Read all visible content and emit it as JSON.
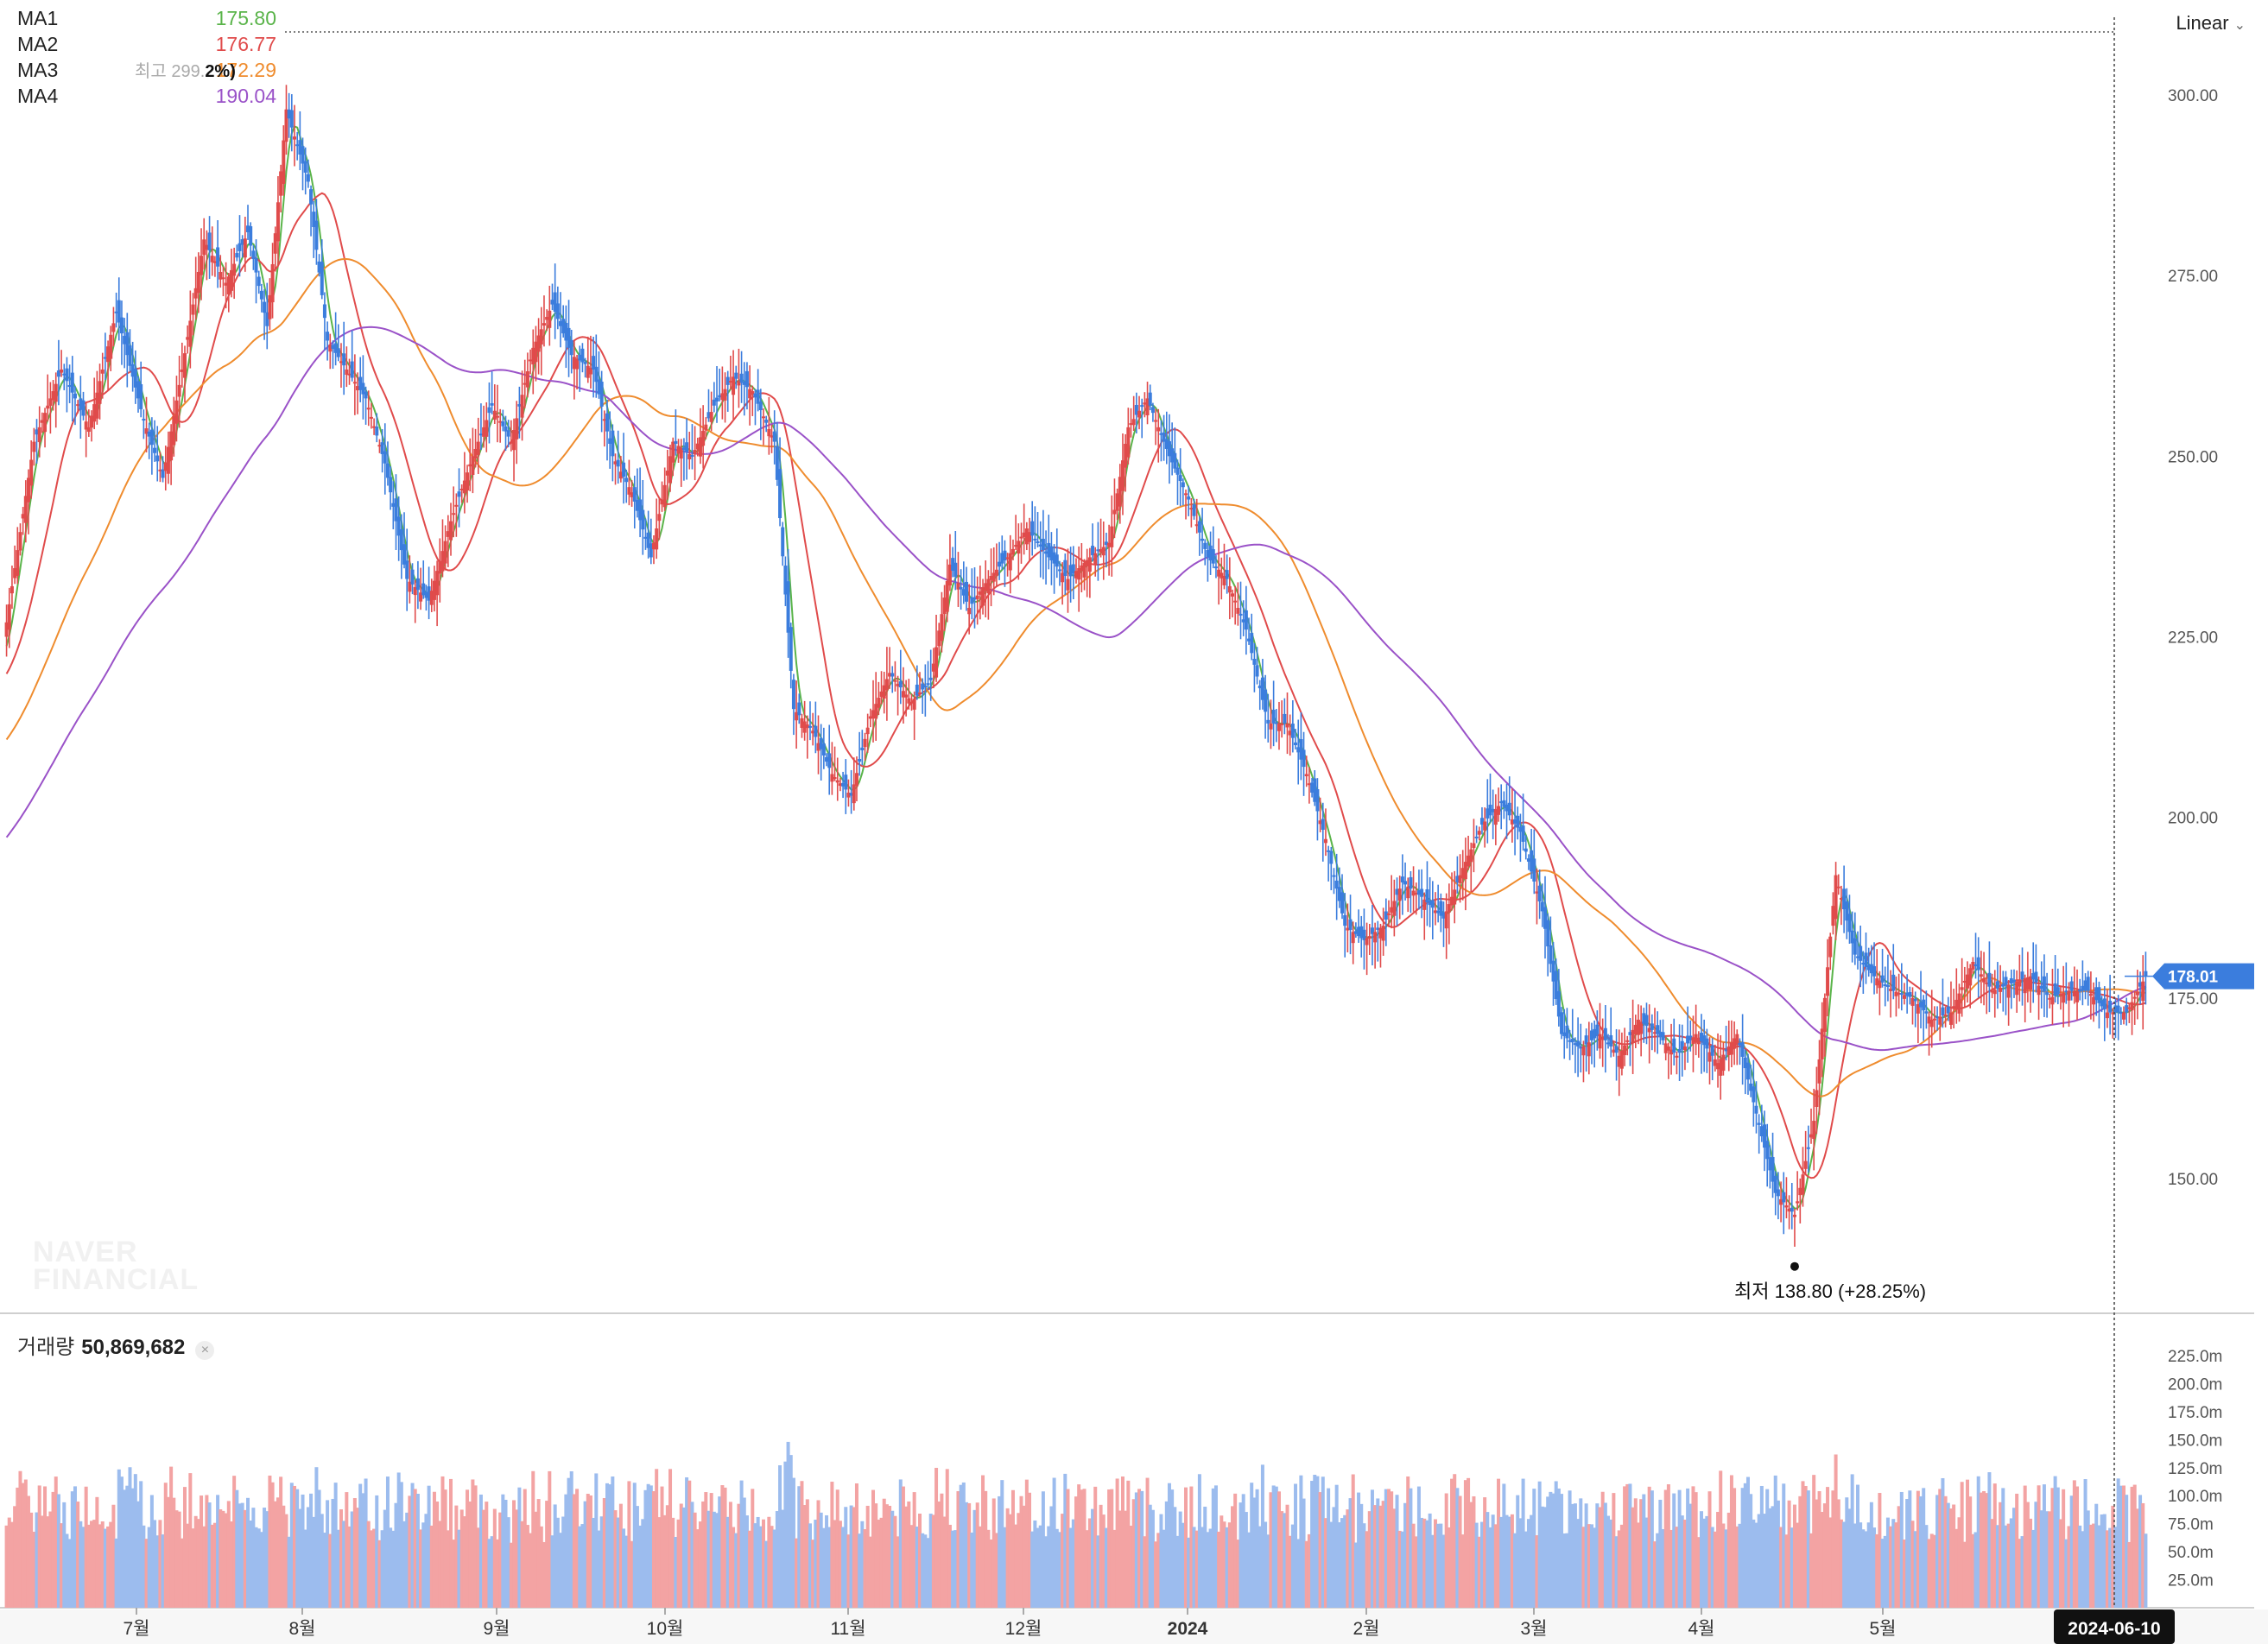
{
  "legend": [
    {
      "name": "MA1",
      "value": "175.80",
      "color": "#5ab44a"
    },
    {
      "name": "MA2",
      "value": "176.77",
      "color": "#e04b4b"
    },
    {
      "name": "MA3",
      "value": "172.29",
      "color": "#ef8c2e"
    },
    {
      "name": "MA4",
      "value": "190.04",
      "color": "#9a52c8"
    }
  ],
  "scale_button": "Linear",
  "volume": {
    "label": "거래량",
    "value": "50,869,682"
  },
  "high_marker": {
    "label": "최고",
    "value": "299.",
    "pct": "2%)"
  },
  "low_marker": {
    "label": "최저",
    "text": "138.80 (+28.25%)"
  },
  "watermark": [
    "NAVER",
    "FINANCIAL"
  ],
  "current_price": {
    "label": "178.01",
    "value": 178.01
  },
  "crosshair_date": "2024-06-10",
  "colors": {
    "up": "#e04b4b",
    "down": "#3b7ddd",
    "up_vol": "#f3a3a3",
    "down_vol": "#9cbcee",
    "current": "#3b7ddd"
  },
  "chart_data": {
    "type": "candlestick",
    "price_axis": {
      "ticks": [
        150,
        175,
        200,
        225,
        250,
        275,
        300
      ],
      "tick_labels": [
        "150.00",
        "175.00",
        "200.00",
        "225.00",
        "250.00",
        "275.00",
        "300.00"
      ],
      "range": [
        135,
        311
      ]
    },
    "volume_axis": {
      "ticks": [
        25,
        50,
        75,
        100,
        125,
        150,
        175,
        200,
        225
      ],
      "tick_labels": [
        "25.0m",
        "50.0m",
        "75.0m",
        "100.0m",
        "125.0m",
        "150.0m",
        "175.0m",
        "200.0m",
        "225.0m"
      ],
      "unit": "m",
      "range": [
        0,
        245
      ]
    },
    "x_labels": [
      "7월",
      "8월",
      "9월",
      "10월",
      "11월",
      "12월",
      "2024",
      "2월",
      "3월",
      "4월",
      "5월"
    ],
    "close_series": [
      [
        0,
        227
      ],
      [
        10,
        252
      ],
      [
        20,
        262
      ],
      [
        30,
        254
      ],
      [
        40,
        270
      ],
      [
        50,
        255
      ],
      [
        57,
        247
      ],
      [
        64,
        262
      ],
      [
        72,
        280
      ],
      [
        80,
        274
      ],
      [
        88,
        281
      ],
      [
        95,
        268
      ],
      [
        102,
        298
      ],
      [
        110,
        288
      ],
      [
        117,
        266
      ],
      [
        124,
        262
      ],
      [
        131,
        258
      ],
      [
        138,
        249
      ],
      [
        146,
        233
      ],
      [
        154,
        230
      ],
      [
        162,
        241
      ],
      [
        170,
        250
      ],
      [
        177,
        257
      ],
      [
        184,
        252
      ],
      [
        192,
        265
      ],
      [
        199,
        271
      ],
      [
        206,
        264
      ],
      [
        214,
        262
      ],
      [
        221,
        250
      ],
      [
        228,
        245
      ],
      [
        235,
        236
      ],
      [
        243,
        252
      ],
      [
        250,
        250
      ],
      [
        258,
        257
      ],
      [
        265,
        261
      ],
      [
        272,
        259
      ],
      [
        280,
        252
      ],
      [
        287,
        215
      ],
      [
        294,
        212
      ],
      [
        301,
        206
      ],
      [
        308,
        203
      ],
      [
        315,
        214
      ],
      [
        322,
        220
      ],
      [
        330,
        216
      ],
      [
        337,
        219
      ],
      [
        344,
        235
      ],
      [
        351,
        229
      ],
      [
        358,
        233
      ],
      [
        365,
        236
      ],
      [
        372,
        240
      ],
      [
        380,
        236
      ],
      [
        387,
        233
      ],
      [
        395,
        236
      ],
      [
        402,
        238
      ],
      [
        409,
        254
      ],
      [
        416,
        258
      ],
      [
        424,
        250
      ],
      [
        431,
        244
      ],
      [
        438,
        236
      ],
      [
        445,
        233
      ],
      [
        452,
        226
      ],
      [
        460,
        213
      ],
      [
        467,
        213
      ],
      [
        474,
        206
      ],
      [
        481,
        197
      ],
      [
        488,
        185
      ],
      [
        495,
        183
      ],
      [
        502,
        185
      ],
      [
        509,
        191
      ],
      [
        516,
        189
      ],
      [
        524,
        186
      ],
      [
        531,
        193
      ],
      [
        538,
        199
      ],
      [
        545,
        202
      ],
      [
        552,
        198
      ],
      [
        560,
        187
      ],
      [
        567,
        170
      ],
      [
        574,
        168
      ],
      [
        581,
        170
      ],
      [
        588,
        167
      ],
      [
        595,
        172
      ],
      [
        602,
        170
      ],
      [
        609,
        167
      ],
      [
        616,
        170
      ],
      [
        624,
        166
      ],
      [
        631,
        170
      ],
      [
        638,
        159
      ],
      [
        645,
        148
      ],
      [
        652,
        145
      ],
      [
        659,
        158
      ],
      [
        667,
        192
      ],
      [
        674,
        181
      ],
      [
        681,
        178
      ],
      [
        688,
        176
      ],
      [
        695,
        175
      ],
      [
        702,
        172
      ],
      [
        709,
        173
      ],
      [
        717,
        180
      ],
      [
        724,
        176
      ],
      [
        731,
        177
      ],
      [
        738,
        178
      ],
      [
        745,
        175
      ],
      [
        752,
        176
      ],
      [
        759,
        176
      ],
      [
        766,
        173
      ],
      [
        773,
        173
      ],
      [
        780,
        178
      ]
    ],
    "moving_averages": [
      {
        "name": "MA1",
        "window": 5
      },
      {
        "name": "MA2",
        "window": 20
      },
      {
        "name": "MA3",
        "window": 60
      },
      {
        "name": "MA4",
        "window": 120
      }
    ],
    "high": {
      "value": 299
    },
    "low": {
      "value": 138.8,
      "pct": "+28.25%"
    },
    "last_close": 178.01,
    "last_volume": 50869682,
    "crosshair_label": "2024-06-10"
  }
}
